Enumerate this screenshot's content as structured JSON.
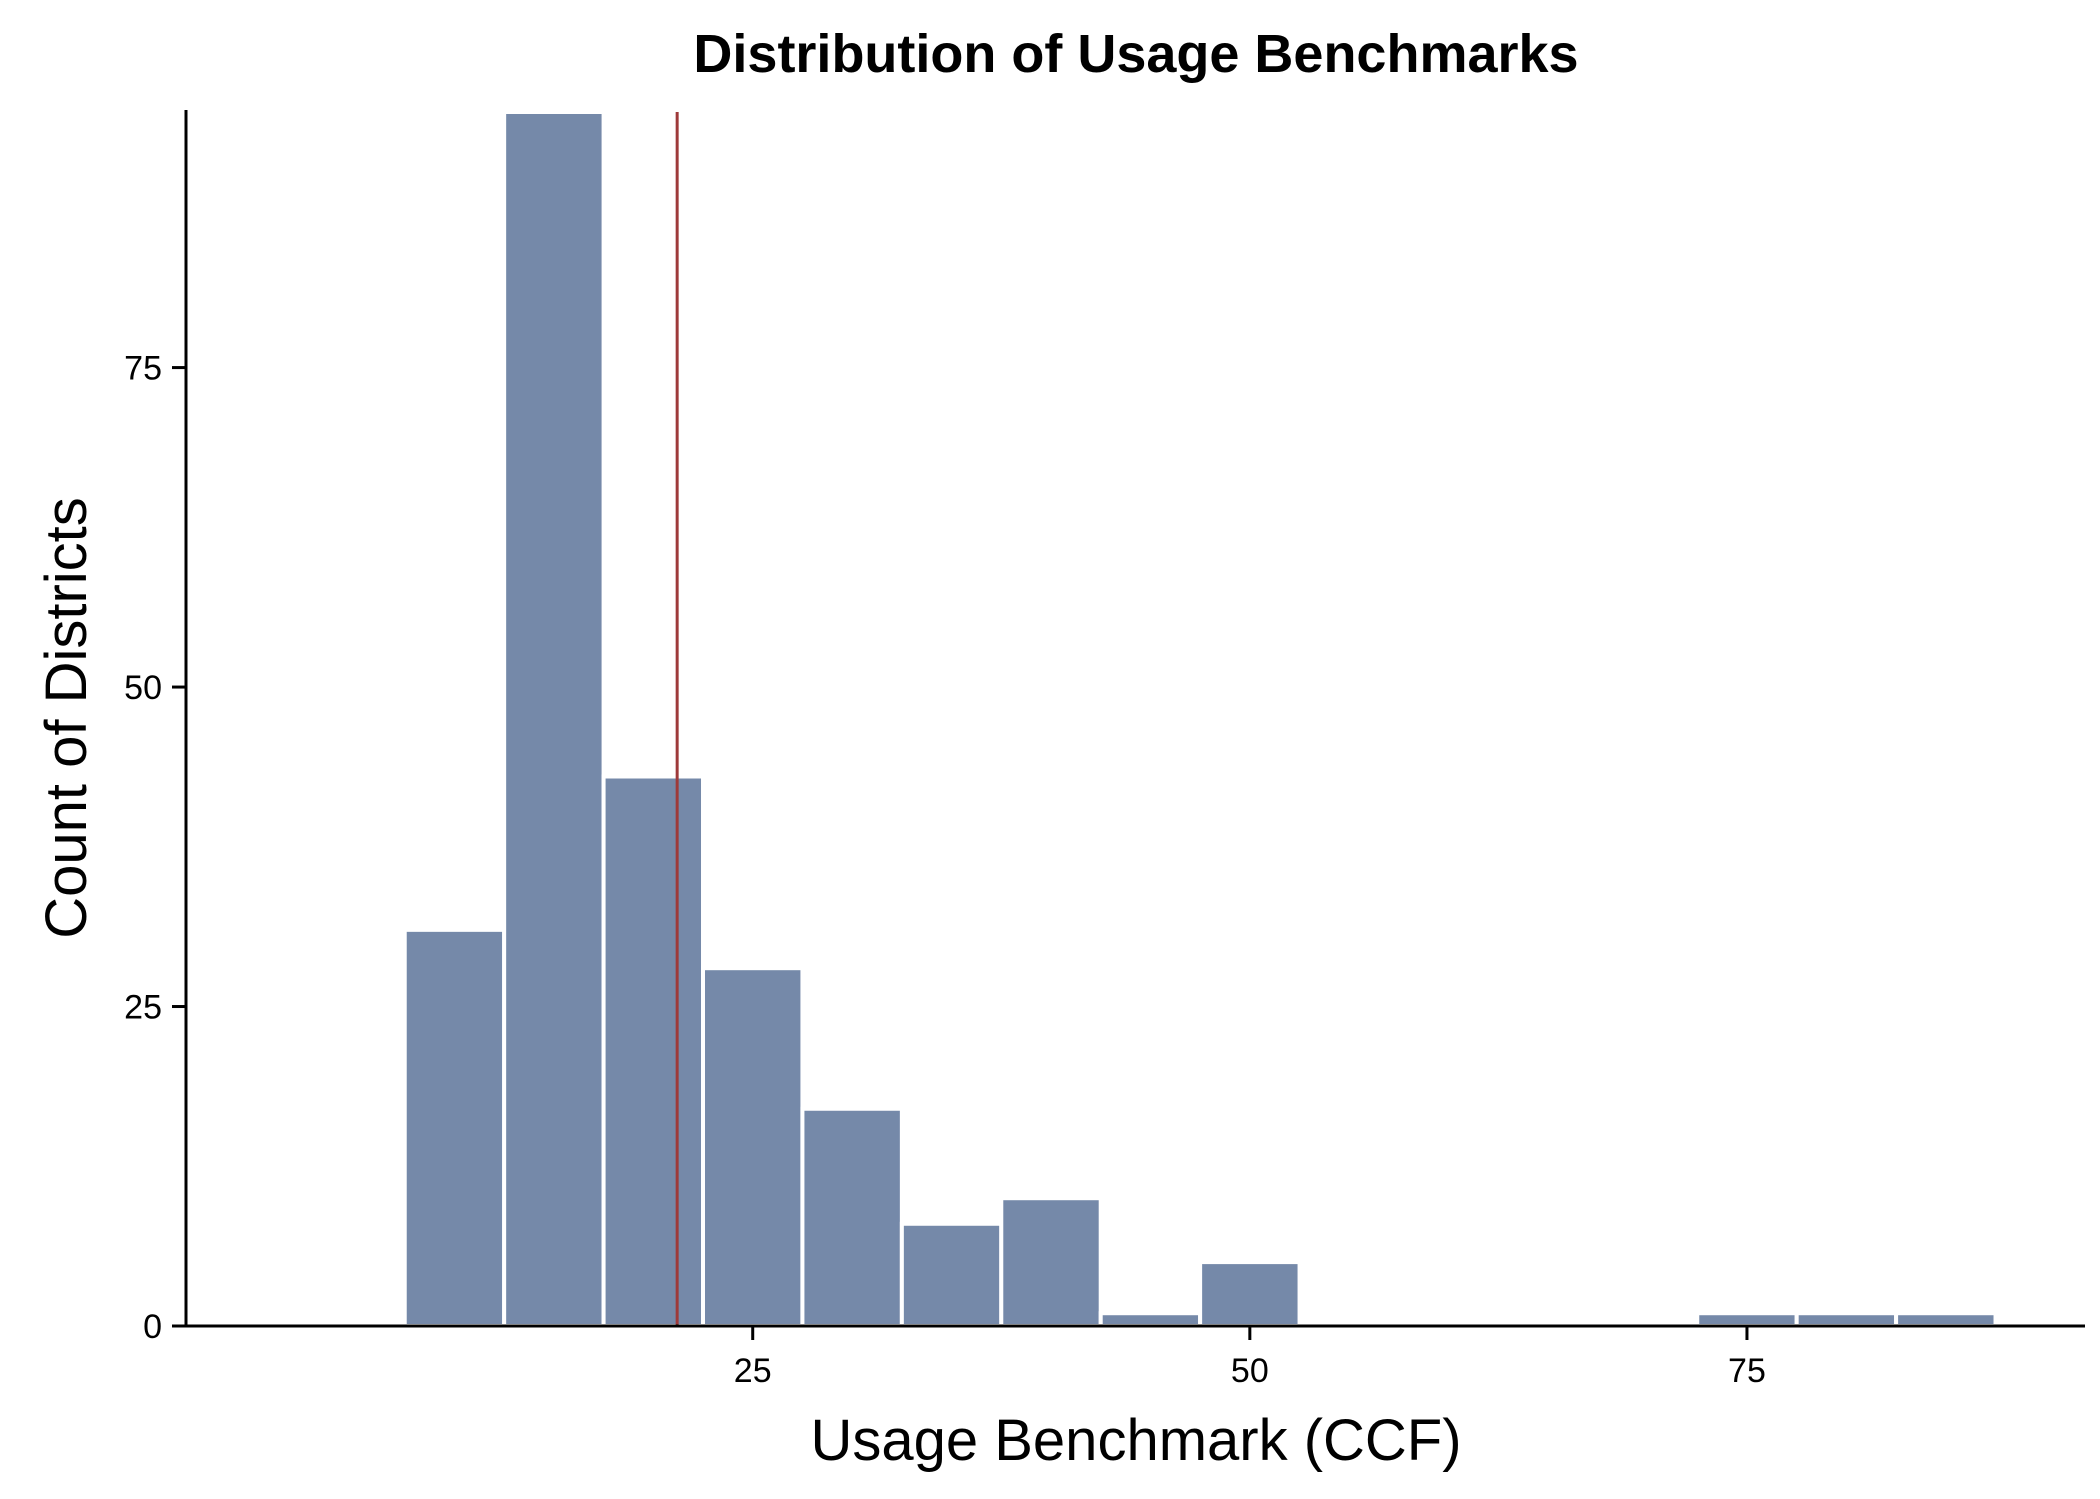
{
  "chart_data": {
    "type": "bar",
    "subtype": "histogram",
    "title": "Distribution of Usage Benchmarks",
    "xlabel": "Usage Benchmark (CCF)",
    "ylabel": "Count of Districts",
    "bin_width": 5,
    "bins": [
      {
        "start": 7.5,
        "end": 12.5,
        "count": 31
      },
      {
        "start": 12.5,
        "end": 17.5,
        "count": 95
      },
      {
        "start": 17.5,
        "end": 22.5,
        "count": 43
      },
      {
        "start": 22.5,
        "end": 27.5,
        "count": 28
      },
      {
        "start": 27.5,
        "end": 32.5,
        "count": 17
      },
      {
        "start": 32.5,
        "end": 37.5,
        "count": 8
      },
      {
        "start": 37.5,
        "end": 42.5,
        "count": 10
      },
      {
        "start": 42.5,
        "end": 47.5,
        "count": 1
      },
      {
        "start": 47.5,
        "end": 52.5,
        "count": 5
      },
      {
        "start": 72.5,
        "end": 77.5,
        "count": 1
      },
      {
        "start": 77.5,
        "end": 82.5,
        "count": 1
      },
      {
        "start": 82.5,
        "end": 87.5,
        "count": 1
      }
    ],
    "reference_line": {
      "x": 21.2,
      "color": "#9e3a3a",
      "orientation": "vertical"
    },
    "xlim": [
      -3.5,
      92
    ],
    "ylim": [
      0,
      95
    ],
    "xticks": [
      25,
      50,
      75
    ],
    "yticks": [
      0,
      25,
      50,
      75
    ],
    "bar_color": "#7589a9",
    "grid": false,
    "legend": "none"
  }
}
